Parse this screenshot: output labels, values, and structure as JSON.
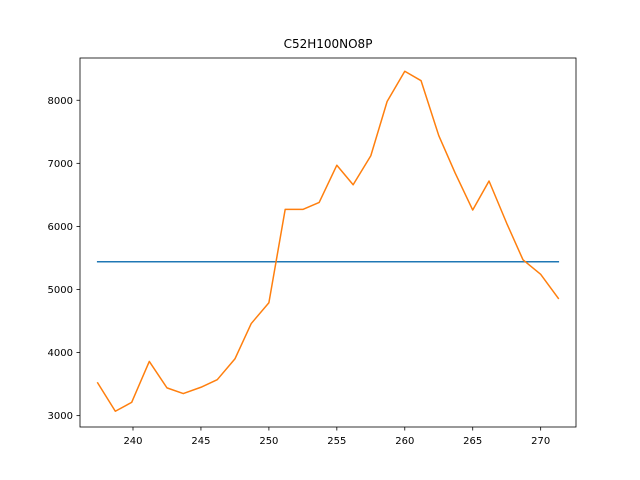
{
  "chart_data": {
    "type": "line",
    "title": "C52H100NO8P",
    "xlabel": "",
    "ylabel": "",
    "xlim": [
      236.1,
      272.6
    ],
    "ylim": [
      2820,
      8670
    ],
    "grid": false,
    "x_ticks": [
      240,
      245,
      250,
      255,
      260,
      265,
      270
    ],
    "y_ticks": [
      3000,
      4000,
      5000,
      6000,
      7000,
      8000
    ],
    "series": [
      {
        "color": "#1f77b4",
        "x": [
          237.4,
          271.3
        ],
        "y": [
          5440,
          5440
        ]
      },
      {
        "color": "#ff7f0e",
        "x": [
          237.4,
          238.7,
          239.9,
          241.2,
          242.5,
          243.7,
          245.0,
          246.2,
          247.5,
          248.7,
          250.0,
          251.2,
          252.5,
          253.7,
          255.0,
          256.2,
          257.5,
          258.7,
          260.0,
          261.2,
          262.5,
          263.7,
          265.0,
          266.2,
          267.5,
          268.7,
          270.0,
          271.3
        ],
        "y": [
          3520,
          3070,
          3210,
          3860,
          3440,
          3350,
          3450,
          3570,
          3900,
          4460,
          4790,
          6270,
          6270,
          6380,
          6970,
          6660,
          7120,
          7980,
          8460,
          8310,
          7440,
          6850,
          6260,
          6720,
          6050,
          5470,
          5240,
          4860
        ]
      }
    ]
  }
}
